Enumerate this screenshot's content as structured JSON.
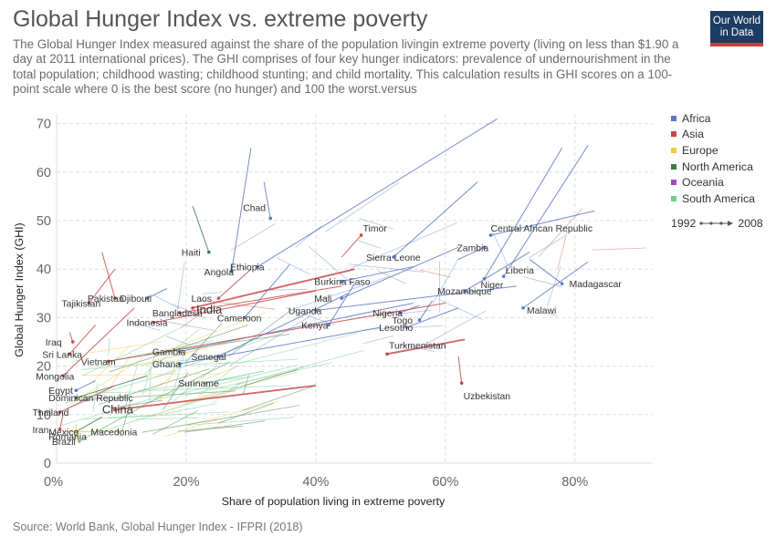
{
  "header": {
    "title": "Global Hunger Index vs. extreme poverty",
    "subtitle": "The Global Hunger Index measured against the share of the population livingin extreme poverty (living on less than $1.90 a day at 2011 international prices). The GHI comprises of four key hunger indicators: prevalence of undernourishment in the total population; childhood wasting; childhood stunting; and child mortality. This calculation results in GHI scores on a 100-point scale where 0 is the best score (no hunger) and 100 the worst.versus"
  },
  "logo": {
    "line1": "Our World",
    "line2": "in Data"
  },
  "source": "Source: World Bank, Global Hunger Index - IFPRI (2018)",
  "legend": {
    "items": [
      {
        "label": "Africa",
        "color": "#5a79c4"
      },
      {
        "label": "Asia",
        "color": "#c74848"
      },
      {
        "label": "Europe",
        "color": "#f2c84b"
      },
      {
        "label": "North America",
        "color": "#3f7a43"
      },
      {
        "label": "Oceania",
        "color": "#a24ab5"
      },
      {
        "label": "South America",
        "color": "#6fcb8f"
      }
    ],
    "timeline_start": "1992",
    "timeline_end": "2008"
  },
  "chart_data": {
    "type": "scatter",
    "xlabel": "Share of population living in extreme poverty",
    "ylabel": "Global Hunger Index (GHI)",
    "xlim": [
      0,
      0.92
    ],
    "ylim": [
      0,
      72
    ],
    "x_ticks": [
      0,
      0.2,
      0.4,
      0.6,
      0.8
    ],
    "x_tick_labels": [
      "0%",
      "20%",
      "40%",
      "60%",
      "80%"
    ],
    "y_ticks": [
      0,
      10,
      20,
      30,
      40,
      50,
      60,
      70
    ],
    "y_tick_labels": [
      "0",
      "10",
      "20",
      "30",
      "40",
      "50",
      "60",
      "70"
    ],
    "grid": true,
    "series": [
      {
        "country": "Chad",
        "region": "Africa",
        "x0": 0.32,
        "y0": 58,
        "x1": 0.33,
        "y1": 50.5
      },
      {
        "country": "Timor",
        "region": "Asia",
        "x0": 0.44,
        "y0": 42.5,
        "x1": 0.47,
        "y1": 47
      },
      {
        "country": "Haiti",
        "region": "North America",
        "x0": 0.21,
        "y0": 53,
        "x1": 0.235,
        "y1": 43.5
      },
      {
        "country": "Ethiopia",
        "region": "Africa",
        "x0": 0.68,
        "y0": 71,
        "x1": 0.31,
        "y1": 40.5
      },
      {
        "country": "Sierra Leone",
        "region": "Africa",
        "x0": 0.65,
        "y0": 58,
        "x1": 0.52,
        "y1": 42.5
      },
      {
        "country": "Zambia",
        "region": "Africa",
        "x0": 0.62,
        "y0": 42,
        "x1": 0.66,
        "y1": 44.5
      },
      {
        "country": "Central African Republic",
        "region": "Africa",
        "x0": 0.83,
        "y0": 52,
        "x1": 0.67,
        "y1": 47
      },
      {
        "country": "Angola",
        "region": "Africa",
        "x0": 0.3,
        "y0": 65,
        "x1": 0.27,
        "y1": 39.5
      },
      {
        "country": "Liberia",
        "region": "Africa",
        "x0": 0.82,
        "y0": 65.5,
        "x1": 0.69,
        "y1": 38.5
      },
      {
        "country": "Madagascar",
        "region": "Africa",
        "x0": 0.73,
        "y0": 42,
        "x1": 0.78,
        "y1": 37
      },
      {
        "country": "Pakistan",
        "region": "Asia",
        "x0": 0.07,
        "y0": 43.5,
        "x1": 0.09,
        "y1": 34
      },
      {
        "country": "Djibouti",
        "region": "Africa",
        "x0": 0.17,
        "y0": 36,
        "x1": 0.14,
        "y1": 34
      },
      {
        "country": "India",
        "region": "Asia",
        "x0": 0.46,
        "y0": 40,
        "x1": 0.21,
        "y1": 32
      },
      {
        "country": "Burkina Faso",
        "region": "Africa",
        "x0": 0.55,
        "y0": 40.5,
        "x1": 0.44,
        "y1": 37.5
      },
      {
        "country": "Mozambique",
        "region": "Africa",
        "x0": 0.73,
        "y0": 43.5,
        "x1": 0.63,
        "y1": 35.5
      },
      {
        "country": "Niger",
        "region": "Africa",
        "x0": 0.78,
        "y0": 65,
        "x1": 0.66,
        "y1": 38
      },
      {
        "country": "Tajikistan",
        "region": "Asia",
        "x0": 0.09,
        "y0": 40,
        "x1": 0.05,
        "y1": 33
      },
      {
        "country": "Laos",
        "region": "Asia",
        "x0": 0.3,
        "y0": 40,
        "x1": 0.25,
        "y1": 34
      },
      {
        "country": "Bangladesh",
        "region": "Asia",
        "x0": 0.44,
        "y0": 36.5,
        "x1": 0.19,
        "y1": 31
      },
      {
        "country": "Mali",
        "region": "Africa",
        "x0": 0.62,
        "y0": 44.5,
        "x1": 0.44,
        "y1": 34
      },
      {
        "country": "Nigeria",
        "region": "Africa",
        "x0": 0.56,
        "y0": 32.5,
        "x1": 0.53,
        "y1": 31
      },
      {
        "country": "Malawi",
        "region": "Africa",
        "x0": 0.82,
        "y0": 41.5,
        "x1": 0.72,
        "y1": 32
      },
      {
        "country": "Indonesia",
        "region": "Asia",
        "x0": 0.4,
        "y0": 35.5,
        "x1": 0.15,
        "y1": 29
      },
      {
        "country": "Cameroon",
        "region": "Africa",
        "x0": 0.36,
        "y0": 41,
        "x1": 0.29,
        "y1": 30
      },
      {
        "country": "Uganda",
        "region": "Africa",
        "x0": 0.71,
        "y0": 36.5,
        "x1": 0.4,
        "y1": 31.5
      },
      {
        "country": "Kenya",
        "region": "Africa",
        "x0": 0.46,
        "y0": 37,
        "x1": 0.42,
        "y1": 28.5
      },
      {
        "country": "Togo",
        "region": "Africa",
        "x0": 0.58,
        "y0": 33.5,
        "x1": 0.56,
        "y1": 29.5
      },
      {
        "country": "Lesotho",
        "region": "Africa",
        "x0": 0.62,
        "y0": 32,
        "x1": 0.54,
        "y1": 28
      },
      {
        "country": "Iraq",
        "region": "Asia",
        "x0": 0.02,
        "y0": 27,
        "x1": 0.025,
        "y1": 25
      },
      {
        "country": "Sri Lanka",
        "region": "Asia",
        "x0": 0.06,
        "y0": 28.5,
        "x1": 0.02,
        "y1": 22.5
      },
      {
        "country": "Gambia",
        "region": "Africa",
        "x0": 0.55,
        "y0": 33,
        "x1": 0.19,
        "y1": 23
      },
      {
        "country": "Senegal",
        "region": "Africa",
        "x0": 0.45,
        "y0": 35,
        "x1": 0.25,
        "y1": 22
      },
      {
        "country": "Turkmenistan",
        "region": "Asia",
        "x0": 0.63,
        "y0": 25.5,
        "x1": 0.51,
        "y1": 22.5
      },
      {
        "country": "Ghana",
        "region": "Africa",
        "x0": 0.5,
        "y0": 28,
        "x1": 0.19,
        "y1": 20.5
      },
      {
        "country": "Vietnam",
        "region": "Asia",
        "x0": 0.6,
        "y0": 33,
        "x1": 0.08,
        "y1": 21
      },
      {
        "country": "Mongolia",
        "region": "Asia",
        "x0": 0.12,
        "y0": 32,
        "x1": 0.01,
        "y1": 18
      },
      {
        "country": "Uzbekistan",
        "region": "Asia",
        "x0": 0.62,
        "y0": 22,
        "x1": 0.625,
        "y1": 16.5
      },
      {
        "country": "Suriname",
        "region": "South America",
        "x0": 0.32,
        "y0": 19,
        "x1": 0.23,
        "y1": 16.5
      },
      {
        "country": "Egypt",
        "region": "Africa",
        "x0": 0.06,
        "y0": 17,
        "x1": 0.03,
        "y1": 15
      },
      {
        "country": "Dominican Republic",
        "region": "North America",
        "x0": 0.14,
        "y0": 18,
        "x1": 0.03,
        "y1": 13.5
      },
      {
        "country": "China",
        "region": "Asia",
        "x0": 0.4,
        "y0": 16,
        "x1": 0.09,
        "y1": 11
      },
      {
        "country": "Thailand",
        "region": "Asia",
        "x0": 0.09,
        "y0": 16,
        "x1": 0.005,
        "y1": 10.5
      },
      {
        "country": "Iran",
        "region": "Asia",
        "x0": 0.01,
        "y0": 10,
        "x1": 0.005,
        "y1": 7
      },
      {
        "country": "Mexico",
        "region": "North America",
        "x0": 0.07,
        "y0": 9.5,
        "x1": 0.03,
        "y1": 6.5
      },
      {
        "country": "Macedonia",
        "region": "Europe",
        "x0": 0.01,
        "y0": 6.5,
        "x1": 0.095,
        "y1": 6.5
      },
      {
        "country": "Romania",
        "region": "Europe",
        "x0": 0.03,
        "y0": 8,
        "x1": 0.03,
        "y1": 5.5
      },
      {
        "country": "Brazil",
        "region": "South America",
        "x0": 0.13,
        "y0": 11.5,
        "x1": 0.035,
        "y1": 4.5
      }
    ]
  }
}
